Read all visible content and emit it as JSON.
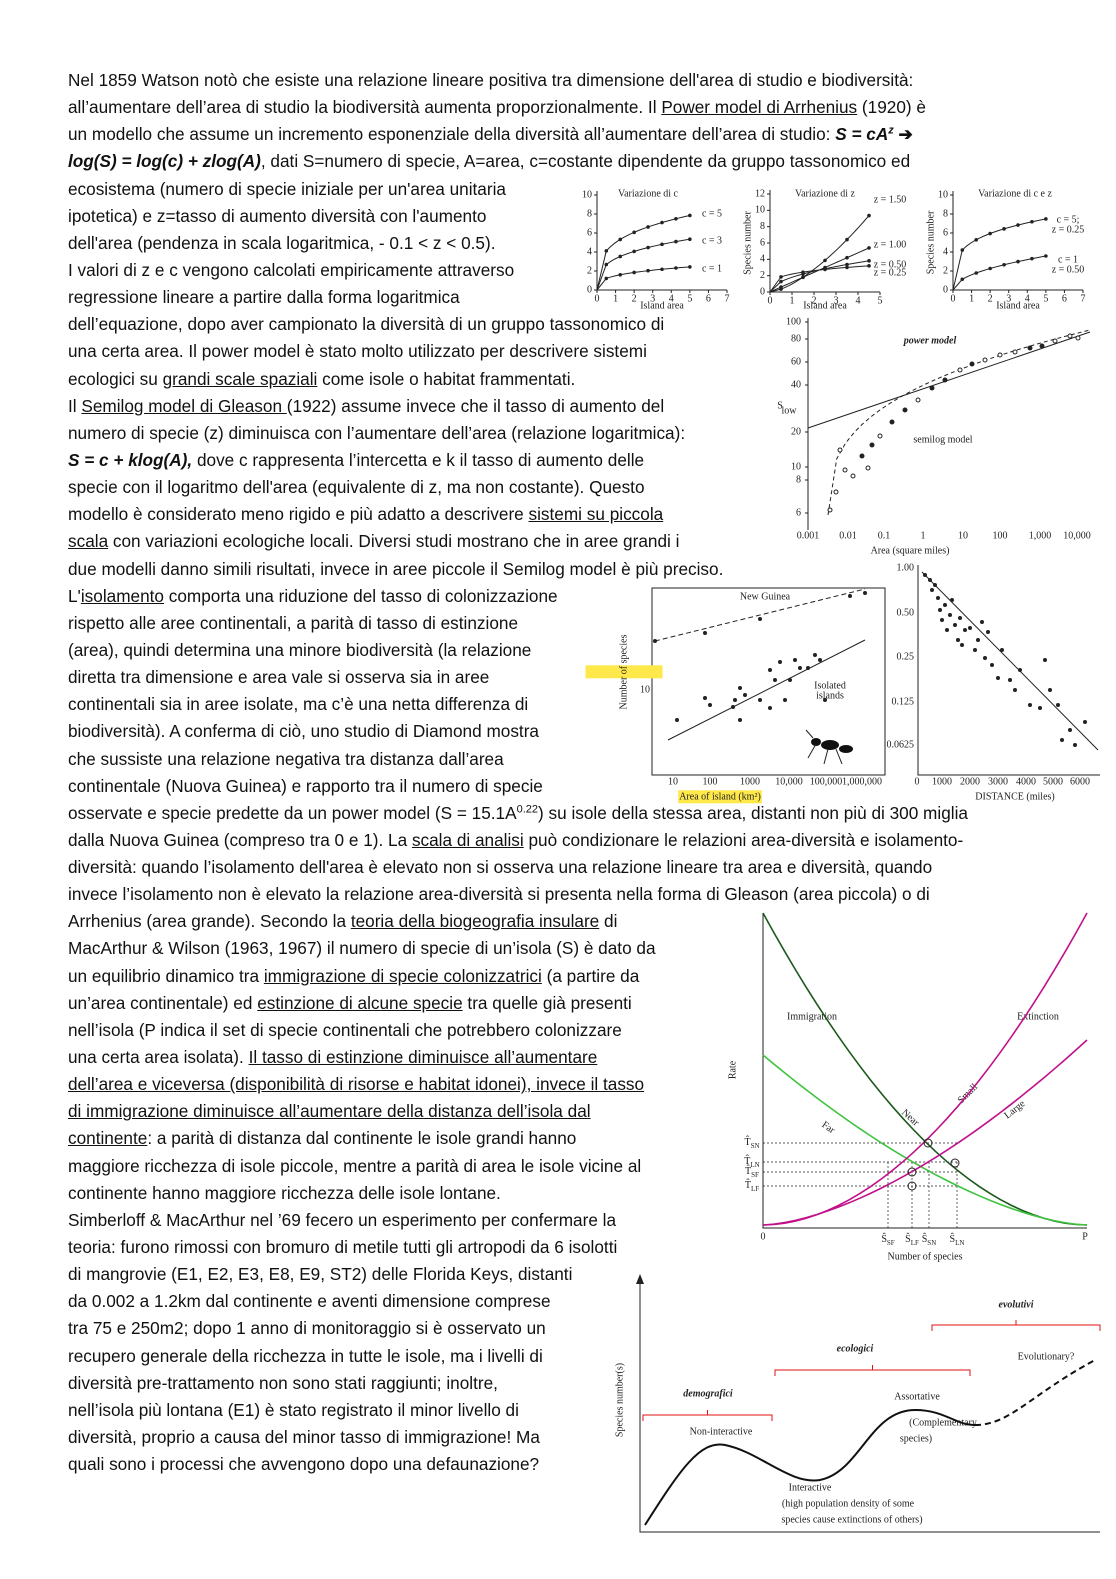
{
  "lines": [
    [
      "Nel 1859 Watson notò che esiste una relazione lineare positiva tra dimensione dell'area di studio e biodiversità:"
    ],
    [
      "all’aumentare dell’area di studio la biodiversità aumenta proporzionalmente. Il ",
      {
        "text": "Power model di Arrhenius",
        "u": true
      },
      " (1920) è"
    ],
    [
      "un modello che assume un incremento esponenziale della diversità all’aumentare dell’area di studio: ",
      {
        "text": "S = cA",
        "b": true,
        "i": true
      },
      {
        "text": "z",
        "b": true,
        "i": true,
        "sup": true
      },
      {
        "text": " ➔",
        "b": true
      }
    ],
    [
      {
        "text": "log(S) = log(c) + zlog(A)",
        "b": true,
        "i": true
      },
      ", dati S=numero di specie, A=area, c=costante dipendente da gruppo tassonomico ed"
    ],
    [
      "ecosistema (numero di specie iniziale per un'area unitaria"
    ],
    [
      "ipotetica) e z=tasso di aumento diversità con l'aumento"
    ],
    [
      "dell'area (pendenza in scala logaritmica, - 0.1 < z < 0.5)."
    ],
    [
      "I valori di z e c vengono calcolati empiricamente attraverso"
    ],
    [
      "regressione lineare a partire dalla forma logaritmica"
    ],
    [
      "dell’equazione, dopo aver campionato la diversità di un gruppo tassonomico di"
    ],
    [
      "una certa area. Il power model è stato molto utilizzato per descrivere sistemi"
    ],
    [
      "ecologici su ",
      {
        "text": "grandi scale spaziali",
        "u": true
      },
      " come isole o habitat frammentati."
    ],
    [
      "Il ",
      {
        "text": "Semilog model di Gleason ",
        "u": true
      },
      "(1922) assume invece che il tasso di aumento del"
    ],
    [
      "numero di specie (z) diminuisca con l’aumentare dell’area (relazione logaritmica):"
    ],
    [
      {
        "text": "S = c + klog(A),",
        "b": true,
        "i": true
      },
      " dove c rappresenta l’intercetta e k il tasso di aumento delle"
    ],
    [
      "specie con il logaritmo dell'area (equivalente di z, ma non costante). Questo"
    ],
    [
      "modello è considerato meno rigido e più adatto a descrivere ",
      {
        "text": "sistemi su piccola",
        "u": true
      }
    ],
    [
      {
        "text": "scala",
        "u": true
      },
      " con variazioni ecologiche locali. Diversi studi mostrano che in aree grandi i"
    ],
    [
      "due modelli danno simili risultati, invece in aree piccole il Semilog model è più preciso."
    ],
    [
      "L'",
      {
        "text": "isolamento",
        "u": true
      },
      " comporta una riduzione del tasso di colonizzazione"
    ],
    [
      "rispetto alle aree continentali, a parità di tasso di estinzione"
    ],
    [
      "(area), quindi determina una minore biodiversità (la relazione"
    ],
    [
      "diretta tra dimensione e area vale si osserva sia in aree"
    ],
    [
      "continentali sia in aree isolate, ma c’è una netta differenza di"
    ],
    [
      "biodiversità). A conferma di ciò, uno studio di Diamond mostra"
    ],
    [
      "che sussiste una relazione negativa tra distanza dall’area"
    ],
    [
      "continentale (Nuova Guinea) e rapporto tra il numero di specie"
    ],
    [
      "osservate e specie predette da un power model (S = 15.1A",
      {
        "text": "0.22",
        "sup": true
      },
      ") su isole della stessa area, distanti non più di 300 miglia"
    ],
    [
      "dalla Nuova Guinea (compreso tra 0 e 1). La ",
      {
        "text": "scala di analisi",
        "u": true
      },
      " può condizionare le relazioni area-diversità e isolamento-"
    ],
    [
      "diversità: quando l’isolamento dell'area è elevato non si osserva una relazione lineare tra area e diversità, quando"
    ],
    [
      "invece l’isolamento non è elevato la relazione area-diversità si presenta nella forma di Gleason (area piccola) o di"
    ],
    [
      "Arrhenius (area grande). Secondo la ",
      {
        "text": "teoria della biogeografia insulare",
        "u": true
      },
      " di"
    ],
    [
      "MacArthur & Wilson (1963, 1967) il numero di specie di un’isola (S) è dato da"
    ],
    [
      "un equilibrio dinamico tra ",
      {
        "text": "immigrazione di specie colonizzatrici",
        "u": true
      },
      " (a partire da"
    ],
    [
      "un’area continentale) ed ",
      {
        "text": "estinzione di alcune specie",
        "u": true
      },
      " tra quelle già presenti"
    ],
    [
      "nell’isola (P indica il set di specie continentali che potrebbero colonizzare"
    ],
    [
      "una certa area isolata). ",
      {
        "text": "Il tasso di estinzione diminuisce all’aumentare",
        "u": true
      }
    ],
    [
      {
        "text": "dell’area e viceversa (disponibilità di risorse e habitat idonei), invece il tasso",
        "u": true
      }
    ],
    [
      {
        "text": "di immigrazione diminuisce all’aumentare della distanza dell’isola dal",
        "u": true
      }
    ],
    [
      {
        "text": "continente",
        "u": true
      },
      ": a parità di distanza dal continente le isole grandi hanno"
    ],
    [
      "maggiore ricchezza di isole piccole, mentre a parità di area le isole vicine al"
    ],
    [
      "continente hanno maggiore ricchezza delle isole lontane."
    ],
    [
      "Simberloff & MacArthur nel ’69 fecero un esperimento per confermare la"
    ],
    [
      "teoria: furono rimossi con bromuro di metile tutti gli artropodi da 6 isolotti"
    ],
    [
      "di mangrovie (E1, E2, E3, E8, E9, ST2) delle Florida Keys, distanti"
    ],
    [
      "da 0.002 a 1.2km dal continente e aventi dimensione comprese"
    ],
    [
      "tra 75 e 250m2; dopo 1 anno di monitoraggio si è osservato un"
    ],
    [
      "recupero generale della ricchezza in tutte le isole, ma i livelli di"
    ],
    [
      "diversità pre-trattamento non sono stati raggiunti; inoltre,"
    ],
    [
      "nell’isola più lontana (E1) è stato registrato il minor livello di"
    ],
    [
      "diversità, proprio a causa del minor tasso di immigrazione! Ma"
    ],
    [
      "quali sono i processi che avvengono dopo una defaunazione?"
    ]
  ],
  "figure_1": {
    "panels": [
      {
        "title": "Variazione di c",
        "x_label": "Island area",
        "xticks": [
          "0",
          "1",
          "2",
          "3",
          "4",
          "5",
          "6",
          "7"
        ],
        "yticks": [
          "10",
          "8",
          "6",
          "4",
          "2",
          "0"
        ],
        "curve_labels": [
          "c = 5",
          "c = 3",
          "c = 1"
        ]
      },
      {
        "title": "Variazione di z",
        "y_label": "Species number",
        "x_label": "Island area",
        "xticks": [
          "0",
          "1",
          "2",
          "3",
          "4",
          "5"
        ],
        "yticks": [
          "12",
          "10",
          "8",
          "6",
          "4",
          "2",
          "0"
        ],
        "curve_labels": [
          "z = 1.50",
          "z = 1.00",
          "z = 0.50",
          "z = 0.25"
        ]
      },
      {
        "title": "Variazione di c e z",
        "y_label": "Species number",
        "x_label": "Island area",
        "xticks": [
          "0",
          "1",
          "2",
          "3",
          "4",
          "5",
          "6",
          "7"
        ],
        "yticks": [
          "10",
          "8",
          "6",
          "4",
          "2",
          "0"
        ],
        "curve_labels": [
          "c = 5;",
          "z = 0.25",
          "c = 1",
          "z = 0.50"
        ]
      }
    ]
  },
  "figure_2": {
    "power_label": "power model",
    "semilog_label": "semilog model",
    "y_label": "S",
    "y_label_sub": "low",
    "yticks": [
      "100",
      "80",
      "60",
      "40",
      "20",
      "10",
      "8",
      "6"
    ],
    "xticks": [
      "0.001",
      "0.01",
      "0.1",
      "1",
      "10",
      "100",
      "1,000",
      "10,000"
    ],
    "x_label": "Area (square miles)"
  },
  "figure_3": {
    "y_label": "Number of species",
    "ytick": "10",
    "mainland_label": "New Guinea",
    "islands_label": [
      "Isolated",
      "islands"
    ],
    "xticks": [
      "10",
      "100",
      "1000",
      "10,000",
      "100,000",
      "1,000,000"
    ],
    "x_label": "Area of island (km²)"
  },
  "figure_4": {
    "yticks": [
      "1.00",
      "0.50",
      "0.25",
      "0.125",
      "0.0625"
    ],
    "xticks": [
      "0",
      "1000",
      "2000",
      "3000",
      "4000",
      "5000",
      "6000"
    ],
    "x_label": "DISTANCE (miles)"
  },
  "figure_5": {
    "immigration": "Immigration",
    "extinction": "Extinction",
    "y_label": "Rate",
    "near": "Near",
    "far": "Far",
    "small": "Small",
    "large": "Large",
    "origin": "0",
    "pool": "P",
    "x_label": "Number of species",
    "x_marks": [
      {
        "main": "Ŝ",
        "sub": "SF"
      },
      {
        "main": "Ŝ",
        "sub": "LF"
      },
      {
        "main": "Ŝ",
        "sub": "SN"
      },
      {
        "main": "Ŝ",
        "sub": "LN"
      }
    ],
    "y_marks": [
      {
        "main": "T̂",
        "sub": "SN"
      },
      {
        "main": "T̂",
        "sub": "LN"
      },
      {
        "main": "T̂",
        "sub": "SF"
      },
      {
        "main": "T̂",
        "sub": "LF"
      }
    ]
  },
  "figure_6": {
    "y_label": "Species number(s)",
    "evolutionary_bracket": "evolutivi",
    "ecological_bracket": "ecologici",
    "demographic_bracket": "demografici",
    "evolutionary": "Evolutionary?",
    "assortative": [
      "Assortative",
      "(Complementary",
      "species)"
    ],
    "non_interactive": "Non-interactive",
    "interactive": [
      "Interactive",
      "(high population density of some",
      "species cause extinctions of others)"
    ]
  }
}
